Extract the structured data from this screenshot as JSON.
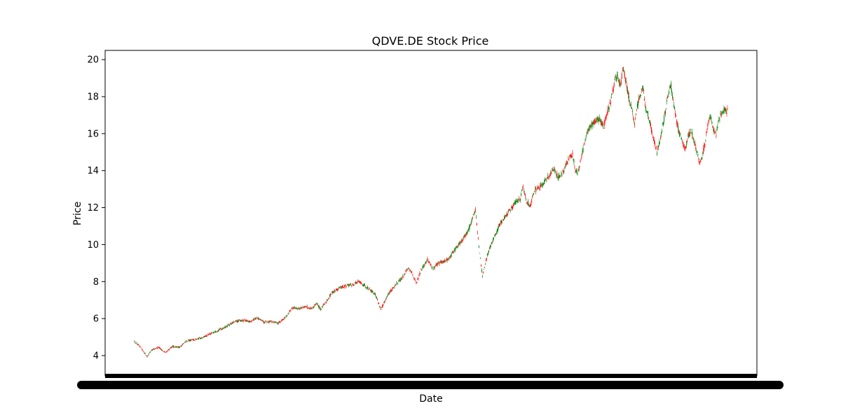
{
  "chart_data": {
    "type": "candlestick",
    "title": "QDVE.DE Stock Price",
    "xlabel": "Date",
    "ylabel": "Price",
    "ylim": [
      2.9,
      20.5
    ],
    "yticks": [
      4,
      6,
      8,
      10,
      12,
      14,
      16,
      18,
      20
    ],
    "grid": false,
    "legend": "none",
    "colors": {
      "up": "#008000",
      "down": "#ff0000",
      "axis": "#000000"
    },
    "x_tick_labels": "overlapping dates (illegible)",
    "series": [
      {
        "values": [
          [
            0,
            4.75
          ],
          [
            6,
            4.55
          ],
          [
            12,
            4.25
          ],
          [
            18,
            3.95
          ],
          [
            24,
            4.3
          ],
          [
            34,
            4.45
          ],
          [
            44,
            4.15
          ],
          [
            54,
            4.5
          ],
          [
            64,
            4.45
          ],
          [
            74,
            4.8
          ],
          [
            84,
            4.85
          ],
          [
            94,
            4.95
          ],
          [
            104,
            5.1
          ],
          [
            114,
            5.3
          ],
          [
            124,
            5.45
          ],
          [
            134,
            5.65
          ],
          [
            144,
            5.85
          ],
          [
            154,
            5.9
          ],
          [
            164,
            5.85
          ],
          [
            174,
            6.05
          ],
          [
            184,
            5.8
          ],
          [
            194,
            5.85
          ],
          [
            204,
            5.75
          ],
          [
            214,
            6.05
          ],
          [
            224,
            6.6
          ],
          [
            234,
            6.55
          ],
          [
            244,
            6.65
          ],
          [
            252,
            6.5
          ],
          [
            258,
            6.85
          ],
          [
            264,
            6.5
          ],
          [
            272,
            6.9
          ],
          [
            280,
            7.4
          ],
          [
            290,
            7.65
          ],
          [
            300,
            7.75
          ],
          [
            310,
            7.85
          ],
          [
            318,
            8.0
          ],
          [
            326,
            7.8
          ],
          [
            334,
            7.6
          ],
          [
            342,
            7.3
          ],
          [
            350,
            6.5
          ],
          [
            360,
            7.3
          ],
          [
            370,
            7.8
          ],
          [
            380,
            8.2
          ],
          [
            388,
            8.7
          ],
          [
            394,
            8.5
          ],
          [
            400,
            7.9
          ],
          [
            408,
            8.7
          ],
          [
            416,
            9.2
          ],
          [
            424,
            8.7
          ],
          [
            432,
            9.0
          ],
          [
            440,
            9.1
          ],
          [
            448,
            9.3
          ],
          [
            456,
            9.8
          ],
          [
            464,
            10.2
          ],
          [
            472,
            10.6
          ],
          [
            478,
            11.2
          ],
          [
            484,
            11.9
          ],
          [
            490,
            9.5
          ],
          [
            494,
            8.3
          ],
          [
            498,
            9.0
          ],
          [
            504,
            9.8
          ],
          [
            512,
            10.5
          ],
          [
            520,
            11.2
          ],
          [
            528,
            11.6
          ],
          [
            536,
            12.0
          ],
          [
            542,
            12.3
          ],
          [
            548,
            12.5
          ],
          [
            552,
            13.2
          ],
          [
            556,
            12.4
          ],
          [
            562,
            12.1
          ],
          [
            568,
            12.9
          ],
          [
            576,
            13.1
          ],
          [
            584,
            13.5
          ],
          [
            590,
            13.8
          ],
          [
            596,
            14.1
          ],
          [
            602,
            13.6
          ],
          [
            610,
            14.0
          ],
          [
            616,
            14.6
          ],
          [
            622,
            14.9
          ],
          [
            626,
            14.0
          ],
          [
            630,
            13.9
          ],
          [
            636,
            15.0
          ],
          [
            642,
            15.9
          ],
          [
            648,
            16.4
          ],
          [
            654,
            16.7
          ],
          [
            660,
            16.8
          ],
          [
            666,
            16.4
          ],
          [
            670,
            17.0
          ],
          [
            676,
            17.7
          ],
          [
            682,
            18.8
          ],
          [
            686,
            19.1
          ],
          [
            690,
            18.6
          ],
          [
            694,
            19.6
          ],
          [
            698,
            18.7
          ],
          [
            702,
            17.9
          ],
          [
            706,
            17.4
          ],
          [
            710,
            16.4
          ],
          [
            714,
            17.5
          ],
          [
            718,
            18.1
          ],
          [
            722,
            18.6
          ],
          [
            726,
            17.3
          ],
          [
            730,
            17.0
          ],
          [
            734,
            16.2
          ],
          [
            738,
            15.6
          ],
          [
            742,
            15.0
          ],
          [
            746,
            15.6
          ],
          [
            750,
            16.4
          ],
          [
            754,
            17.2
          ],
          [
            758,
            18.1
          ],
          [
            762,
            18.6
          ],
          [
            766,
            17.5
          ],
          [
            770,
            16.6
          ],
          [
            774,
            16.0
          ],
          [
            778,
            15.5
          ],
          [
            782,
            15.2
          ],
          [
            786,
            15.8
          ],
          [
            790,
            16.2
          ],
          [
            794,
            15.8
          ],
          [
            798,
            15.1
          ],
          [
            802,
            14.5
          ],
          [
            806,
            14.7
          ],
          [
            810,
            15.5
          ],
          [
            814,
            16.4
          ],
          [
            818,
            16.9
          ],
          [
            822,
            16.3
          ],
          [
            826,
            16.0
          ],
          [
            830,
            16.8
          ],
          [
            834,
            17.0
          ],
          [
            838,
            17.3
          ],
          [
            842,
            17.2
          ]
        ]
      }
    ]
  }
}
